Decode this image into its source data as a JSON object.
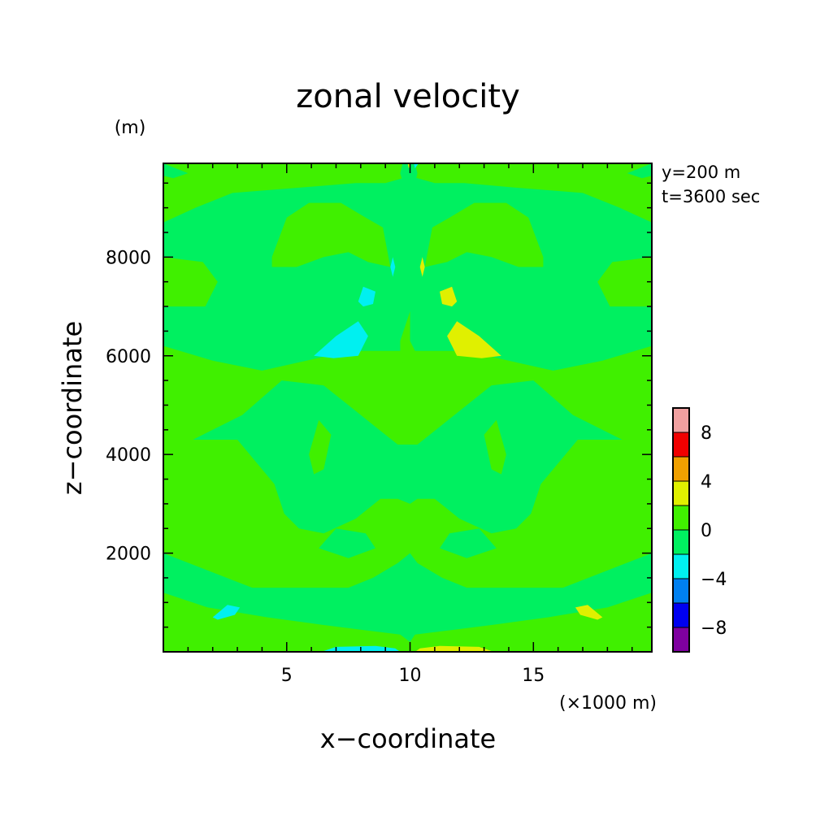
{
  "chart_data": {
    "type": "heatmap",
    "subtype": "filled-contour",
    "title": "zonal velocity",
    "xlabel": "x−coordinate",
    "ylabel": "z−coordinate",
    "x_unit": "(×1000 m)",
    "y_unit": "(m)",
    "annotations": [
      "y=200 m",
      "t=3600 sec"
    ],
    "xlim": [
      0,
      19.8
    ],
    "ylim": [
      0,
      9900
    ],
    "x_ticks": [
      5,
      10,
      15
    ],
    "y_ticks": [
      2000,
      4000,
      6000,
      8000
    ],
    "colorbar": {
      "levels": [
        -10,
        -8,
        -6,
        -4,
        -2,
        0,
        2,
        4,
        6,
        8,
        10
      ],
      "tick_labels": [
        "8",
        "4",
        "0",
        "−4",
        "−8"
      ],
      "tick_values": [
        8,
        4,
        0,
        -4,
        -8
      ],
      "colors": [
        "#7f00a0",
        "#0000f0",
        "#0080f0",
        "#00f0f0",
        "#00f060",
        "#40f000",
        "#e0f000",
        "#f0a000",
        "#f00000",
        "#f0a0a0"
      ]
    },
    "background_level_color": "#00f060",
    "regions": [
      {
        "color": "#40f000",
        "points": [
          [
            0,
            9900
          ],
          [
            19.8,
            9900
          ],
          [
            19.8,
            8700
          ],
          [
            18.5,
            9000
          ],
          [
            17,
            9300
          ],
          [
            14.5,
            9400
          ],
          [
            12.2,
            9500
          ],
          [
            11,
            9500
          ],
          [
            10.3,
            9600
          ],
          [
            9.7,
            9600
          ],
          [
            9,
            9500
          ],
          [
            7.8,
            9500
          ],
          [
            5.3,
            9400
          ],
          [
            2.8,
            9300
          ],
          [
            1.3,
            9000
          ],
          [
            0,
            8700
          ]
        ]
      },
      {
        "color": "#40f000",
        "points": [
          [
            4.4,
            8000
          ],
          [
            5,
            8800
          ],
          [
            5.9,
            9100
          ],
          [
            7.2,
            9100
          ],
          [
            8.2,
            8800
          ],
          [
            8.9,
            8600
          ],
          [
            9.2,
            7800
          ],
          [
            8.3,
            7900
          ],
          [
            7.5,
            8100
          ],
          [
            6.5,
            8000
          ],
          [
            5.4,
            7800
          ],
          [
            4.4,
            7800
          ]
        ]
      },
      {
        "color": "#40f000",
        "points": [
          [
            15.4,
            8000
          ],
          [
            14.8,
            8800
          ],
          [
            13.9,
            9100
          ],
          [
            12.6,
            9100
          ],
          [
            11.6,
            8800
          ],
          [
            10.9,
            8600
          ],
          [
            10.6,
            7800
          ],
          [
            11.5,
            7900
          ],
          [
            12.3,
            8100
          ],
          [
            13.3,
            8000
          ],
          [
            14.4,
            7800
          ],
          [
            15.4,
            7800
          ]
        ]
      },
      {
        "color": "#40f000",
        "points": [
          [
            0,
            8000
          ],
          [
            1.6,
            7900
          ],
          [
            2.2,
            7500
          ],
          [
            1.7,
            7000
          ],
          [
            0,
            7000
          ]
        ]
      },
      {
        "color": "#40f000",
        "points": [
          [
            19.8,
            8000
          ],
          [
            18.2,
            7900
          ],
          [
            17.6,
            7500
          ],
          [
            18.1,
            7000
          ],
          [
            19.8,
            7000
          ]
        ]
      },
      {
        "color": "#40f000",
        "points": [
          [
            0,
            6200
          ],
          [
            2,
            5900
          ],
          [
            4,
            5700
          ],
          [
            5.8,
            5900
          ],
          [
            7.5,
            6100
          ],
          [
            8.8,
            6100
          ],
          [
            9.6,
            6100
          ],
          [
            10,
            6300
          ],
          [
            10,
            4200
          ],
          [
            9.5,
            4200
          ],
          [
            8.5,
            4600
          ],
          [
            7.5,
            5000
          ],
          [
            6.5,
            5400
          ],
          [
            4.8,
            5500
          ],
          [
            3.2,
            4800
          ],
          [
            1.2,
            4300
          ],
          [
            0,
            4300
          ]
        ]
      },
      {
        "color": "#40f000",
        "points": [
          [
            19.8,
            6200
          ],
          [
            17.8,
            5900
          ],
          [
            15.8,
            5700
          ],
          [
            14,
            5900
          ],
          [
            12.3,
            6100
          ],
          [
            11,
            6100
          ],
          [
            10.2,
            6100
          ],
          [
            10,
            6300
          ],
          [
            10,
            4200
          ],
          [
            10.3,
            4200
          ],
          [
            11.3,
            4600
          ],
          [
            12.3,
            5000
          ],
          [
            13.3,
            5400
          ],
          [
            15,
            5500
          ],
          [
            16.6,
            4800
          ],
          [
            18.6,
            4300
          ],
          [
            19.8,
            4300
          ]
        ]
      },
      {
        "color": "#00f060",
        "points": [
          [
            10,
            9000
          ],
          [
            10.3,
            9700
          ],
          [
            10.2,
            9900
          ],
          [
            9.7,
            9900
          ],
          [
            9.6,
            9700
          ]
        ]
      },
      {
        "color": "#40f000",
        "points": [
          [
            9.6,
            6300
          ],
          [
            10,
            6900
          ],
          [
            10,
            5800
          ],
          [
            9.6,
            5900
          ]
        ]
      },
      {
        "color": "#40f000",
        "points": [
          [
            0,
            4300
          ],
          [
            3,
            4300
          ],
          [
            4.5,
            3400
          ],
          [
            4.9,
            2800
          ],
          [
            5.5,
            2500
          ],
          [
            6.5,
            2400
          ],
          [
            7.8,
            2700
          ],
          [
            8.8,
            3100
          ],
          [
            9.5,
            3100
          ],
          [
            10,
            3000
          ],
          [
            10,
            2000
          ],
          [
            9.5,
            1800
          ],
          [
            8.5,
            1500
          ],
          [
            7.5,
            1300
          ],
          [
            6,
            1300
          ],
          [
            3.6,
            1300
          ],
          [
            0,
            2000
          ]
        ]
      },
      {
        "color": "#40f000",
        "points": [
          [
            19.8,
            4300
          ],
          [
            16.8,
            4300
          ],
          [
            15.3,
            3400
          ],
          [
            14.9,
            2800
          ],
          [
            14.3,
            2500
          ],
          [
            13.3,
            2400
          ],
          [
            12,
            2700
          ],
          [
            11,
            3100
          ],
          [
            10.3,
            3100
          ],
          [
            10,
            3000
          ],
          [
            10,
            2000
          ],
          [
            10.3,
            1800
          ],
          [
            11.3,
            1500
          ],
          [
            12.3,
            1300
          ],
          [
            13.8,
            1300
          ],
          [
            16.2,
            1300
          ],
          [
            19.8,
            2000
          ]
        ]
      },
      {
        "color": "#00f060",
        "points": [
          [
            6.3,
            2100
          ],
          [
            7,
            2500
          ],
          [
            8.2,
            2400
          ],
          [
            8.6,
            2100
          ],
          [
            7.5,
            1900
          ]
        ]
      },
      {
        "color": "#00f060",
        "points": [
          [
            13.5,
            2100
          ],
          [
            12.8,
            2500
          ],
          [
            11.6,
            2400
          ],
          [
            11.2,
            2100
          ],
          [
            12.3,
            1900
          ]
        ]
      },
      {
        "color": "#40f000",
        "points": [
          [
            5.9,
            4000
          ],
          [
            6.3,
            4700
          ],
          [
            6.8,
            4400
          ],
          [
            6.5,
            3700
          ],
          [
            6.1,
            3600
          ]
        ]
      },
      {
        "color": "#40f000",
        "points": [
          [
            13.9,
            4000
          ],
          [
            13.5,
            4700
          ],
          [
            13,
            4400
          ],
          [
            13.3,
            3700
          ],
          [
            13.7,
            3600
          ]
        ]
      },
      {
        "color": "#40f000",
        "points": [
          [
            0,
            1200
          ],
          [
            1.8,
            900
          ],
          [
            4.2,
            700
          ],
          [
            6.4,
            550
          ],
          [
            8,
            450
          ],
          [
            9.6,
            350
          ],
          [
            10,
            200
          ],
          [
            10,
            0
          ],
          [
            0,
            0
          ]
        ]
      },
      {
        "color": "#40f000",
        "points": [
          [
            19.8,
            1200
          ],
          [
            18,
            900
          ],
          [
            15.6,
            700
          ],
          [
            13.4,
            550
          ],
          [
            11.8,
            450
          ],
          [
            10.2,
            350
          ],
          [
            10,
            200
          ],
          [
            10,
            0
          ],
          [
            19.8,
            0
          ]
        ]
      },
      {
        "color": "#00f060",
        "points": [
          [
            0,
            9900
          ],
          [
            1,
            9700
          ],
          [
            0.4,
            9600
          ],
          [
            0,
            9650
          ]
        ]
      },
      {
        "color": "#00f060",
        "points": [
          [
            19.8,
            9900
          ],
          [
            18.8,
            9700
          ],
          [
            19.4,
            9600
          ],
          [
            19.8,
            9650
          ]
        ]
      },
      {
        "color": "#00f0f0",
        "points": [
          [
            6.1,
            6000
          ],
          [
            7,
            6400
          ],
          [
            7.9,
            6700
          ],
          [
            8.3,
            6400
          ],
          [
            7.9,
            6000
          ],
          [
            6.9,
            5950
          ]
        ]
      },
      {
        "color": "#e0f000",
        "points": [
          [
            13.7,
            6000
          ],
          [
            12.8,
            6400
          ],
          [
            11.9,
            6700
          ],
          [
            11.5,
            6400
          ],
          [
            11.9,
            6000
          ],
          [
            12.9,
            5950
          ]
        ]
      },
      {
        "color": "#00f0f0",
        "points": [
          [
            7.9,
            7100
          ],
          [
            8.1,
            7400
          ],
          [
            8.6,
            7300
          ],
          [
            8.5,
            7050
          ],
          [
            8.1,
            7000
          ]
        ]
      },
      {
        "color": "#e0f000",
        "points": [
          [
            11.9,
            7100
          ],
          [
            11.7,
            7400
          ],
          [
            11.2,
            7300
          ],
          [
            11.3,
            7050
          ],
          [
            11.7,
            7000
          ]
        ]
      },
      {
        "color": "#00f0f0",
        "points": [
          [
            9.2,
            7800
          ],
          [
            9.3,
            8000
          ],
          [
            9.4,
            7800
          ],
          [
            9.3,
            7600
          ]
        ]
      },
      {
        "color": "#e0f000",
        "points": [
          [
            10.6,
            7800
          ],
          [
            10.5,
            8000
          ],
          [
            10.4,
            7800
          ],
          [
            10.5,
            7600
          ]
        ]
      },
      {
        "color": "#00f0f0",
        "points": [
          [
            2,
            700
          ],
          [
            2.6,
            950
          ],
          [
            3.1,
            900
          ],
          [
            2.9,
            750
          ],
          [
            2.2,
            650
          ]
        ]
      },
      {
        "color": "#e0f000",
        "points": [
          [
            17.8,
            700
          ],
          [
            17.2,
            950
          ],
          [
            16.7,
            900
          ],
          [
            16.9,
            750
          ],
          [
            17.6,
            650
          ]
        ]
      },
      {
        "color": "#00f0f0",
        "points": [
          [
            6.4,
            0
          ],
          [
            7,
            100
          ],
          [
            8.6,
            120
          ],
          [
            9.4,
            70
          ],
          [
            9.6,
            0
          ]
        ]
      },
      {
        "color": "#e0f000",
        "points": [
          [
            13.4,
            0
          ],
          [
            12.8,
            100
          ],
          [
            11.2,
            120
          ],
          [
            10.4,
            70
          ],
          [
            10.2,
            0
          ]
        ]
      },
      {
        "color": "#e0f000",
        "points": [
          [
            9.9,
            9900
          ],
          [
            9.95,
            9800
          ],
          [
            10.05,
            9900
          ]
        ]
      },
      {
        "color": "#00f0f0",
        "points": [
          [
            10.15,
            9900
          ],
          [
            10.2,
            9800
          ],
          [
            10.35,
            9900
          ]
        ]
      }
    ]
  }
}
